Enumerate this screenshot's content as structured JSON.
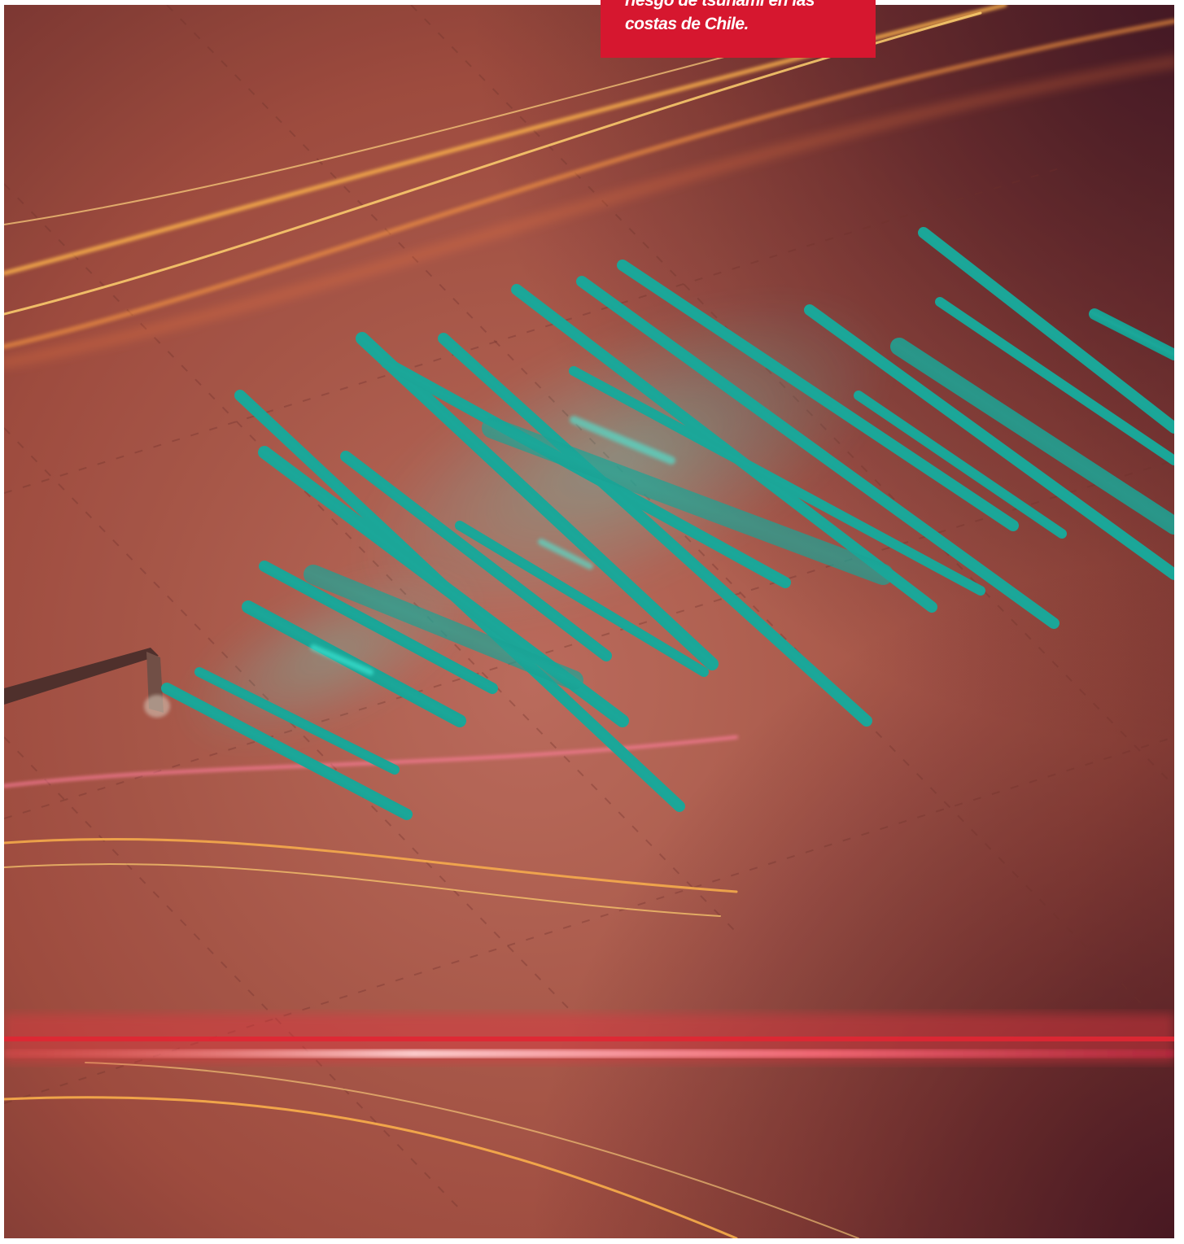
{
  "image": {
    "subject": "seismograph-wave-illustration",
    "palette": {
      "background": "#9c4a3f",
      "wave": "#0f8f84",
      "wave_glow": "#1fe0d0",
      "streak_orange": "#ffb347",
      "streak_red": "#ff4a4a",
      "caption_bg": "#d6172f",
      "caption_text": "#ffffff"
    }
  },
  "caption": {
    "line1": "riesgo de tsunami en las",
    "line2": "costas de Chile."
  }
}
